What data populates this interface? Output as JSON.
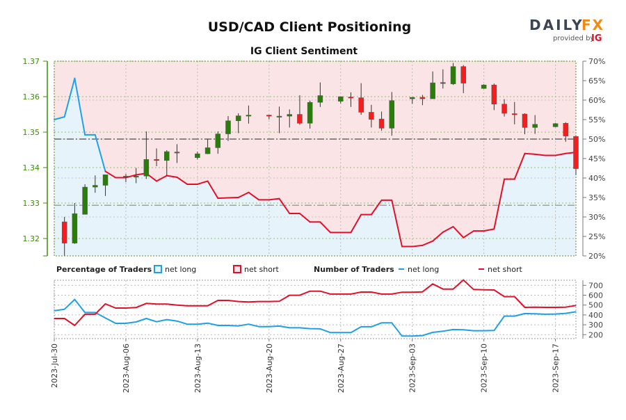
{
  "header": {
    "title": "USD/CAD Client Positioning",
    "subtitle": "IG Client Sentiment"
  },
  "logo": {
    "brand_dark": "DAILY",
    "brand_accent": "FX",
    "provided_by": "provided by",
    "provider": "IG"
  },
  "legend": {
    "pct_title": "Percentage of Traders",
    "pct_long": "net long",
    "pct_short": "net short",
    "num_title": "Number of Traders",
    "num_long": "net long",
    "num_short": "net short"
  },
  "colors": {
    "long": "#1ea0e6",
    "short": "#e0102a",
    "long_fill": "#e6f3fb",
    "short_fill": "#fae4e5",
    "candle_up": "#2a7d0b",
    "candle_down": "#f41e1e",
    "price_axis": "#3d8b0a"
  },
  "chart_data": [
    {
      "type": "candlestick+area",
      "title": "USD/CAD Client Positioning",
      "subtitle": "IG Client Sentiment",
      "left_axis": {
        "ylim": [
          1.3151,
          1.37
        ],
        "ticks": [
          "1.37",
          "1.36",
          "1.35",
          "1.34",
          "1.33",
          "1.32"
        ],
        "tick_values": [
          1.37,
          1.36,
          1.35,
          1.34,
          1.33,
          1.32
        ]
      },
      "right_axis": {
        "ylim": [
          20,
          70
        ],
        "ticks": [
          "70%",
          "65%",
          "60%",
          "55%",
          "50%",
          "45%",
          "40%",
          "35%",
          "30%",
          "25%",
          "20%"
        ],
        "tick_values": [
          70,
          65,
          60,
          55,
          50,
          45,
          40,
          35,
          30,
          25,
          20
        ]
      },
      "x_ticks": [
        "2023-Jul-30",
        "2023-Aug-06",
        "2023-Aug-13",
        "2023-Aug-20",
        "2023-Aug-27",
        "2023-Sep-03",
        "2023-Sep-10",
        "2023-Sep-17"
      ],
      "x_tick_dates": [
        "2023-07-30",
        "2023-08-06",
        "2023-08-13",
        "2023-08-20",
        "2023-08-27",
        "2023-09-03",
        "2023-09-10",
        "2023-09-17"
      ],
      "x_range": [
        "2023-07-30",
        "2023-09-19"
      ],
      "grid": true,
      "reference_levels_pct": [
        50,
        33
      ],
      "candles": [
        {
          "d": "2023-07-31",
          "o": 1.3247,
          "h": 1.3261,
          "l": 1.3152,
          "c": 1.3187
        },
        {
          "d": "2023-08-01",
          "o": 1.3187,
          "h": 1.33,
          "l": 1.3185,
          "c": 1.327
        },
        {
          "d": "2023-08-02",
          "o": 1.3268,
          "h": 1.3353,
          "l": 1.3268,
          "c": 1.3345
        },
        {
          "d": "2023-08-03",
          "o": 1.3345,
          "h": 1.3378,
          "l": 1.3329,
          "c": 1.335
        },
        {
          "d": "2023-08-04",
          "o": 1.335,
          "h": 1.338,
          "l": 1.332,
          "c": 1.338
        },
        {
          "d": "2023-08-06",
          "o": 1.3376,
          "h": 1.3382,
          "l": 1.3359,
          "c": 1.3374
        },
        {
          "d": "2023-08-07",
          "o": 1.3375,
          "h": 1.3399,
          "l": 1.3356,
          "c": 1.3376
        },
        {
          "d": "2023-08-08",
          "o": 1.3376,
          "h": 1.3502,
          "l": 1.3368,
          "c": 1.3423
        },
        {
          "d": "2023-08-09",
          "o": 1.3423,
          "h": 1.3454,
          "l": 1.3404,
          "c": 1.3421
        },
        {
          "d": "2023-08-10",
          "o": 1.342,
          "h": 1.3449,
          "l": 1.3377,
          "c": 1.3445
        },
        {
          "d": "2023-08-11",
          "o": 1.3444,
          "h": 1.3466,
          "l": 1.3413,
          "c": 1.3443
        },
        {
          "d": "2023-08-13",
          "o": 1.3428,
          "h": 1.3445,
          "l": 1.3423,
          "c": 1.3439
        },
        {
          "d": "2023-08-14",
          "o": 1.3439,
          "h": 1.3481,
          "l": 1.3438,
          "c": 1.3456
        },
        {
          "d": "2023-08-15",
          "o": 1.3456,
          "h": 1.3502,
          "l": 1.3439,
          "c": 1.3495
        },
        {
          "d": "2023-08-16",
          "o": 1.3495,
          "h": 1.3545,
          "l": 1.3475,
          "c": 1.3532
        },
        {
          "d": "2023-08-17",
          "o": 1.3532,
          "h": 1.3553,
          "l": 1.3497,
          "c": 1.3546
        },
        {
          "d": "2023-08-18",
          "o": 1.3547,
          "h": 1.3575,
          "l": 1.3524,
          "c": 1.3548
        },
        {
          "d": "2023-08-20",
          "o": 1.3548,
          "h": 1.3549,
          "l": 1.3536,
          "c": 1.3545
        },
        {
          "d": "2023-08-21",
          "o": 1.3545,
          "h": 1.3572,
          "l": 1.3497,
          "c": 1.3545
        },
        {
          "d": "2023-08-22",
          "o": 1.3545,
          "h": 1.3564,
          "l": 1.3513,
          "c": 1.355
        },
        {
          "d": "2023-08-23",
          "o": 1.355,
          "h": 1.3604,
          "l": 1.3521,
          "c": 1.3525
        },
        {
          "d": "2023-08-24",
          "o": 1.3525,
          "h": 1.3589,
          "l": 1.351,
          "c": 1.3584
        },
        {
          "d": "2023-08-25",
          "o": 1.3584,
          "h": 1.364,
          "l": 1.3571,
          "c": 1.3603
        },
        {
          "d": "2023-08-27",
          "o": 1.3587,
          "h": 1.36,
          "l": 1.3581,
          "c": 1.36
        },
        {
          "d": "2023-08-28",
          "o": 1.3599,
          "h": 1.3612,
          "l": 1.3571,
          "c": 1.3598
        },
        {
          "d": "2023-08-29",
          "o": 1.3597,
          "h": 1.3638,
          "l": 1.3549,
          "c": 1.3556
        },
        {
          "d": "2023-08-30",
          "o": 1.3556,
          "h": 1.3577,
          "l": 1.3513,
          "c": 1.3536
        },
        {
          "d": "2023-08-31",
          "o": 1.3537,
          "h": 1.3558,
          "l": 1.3504,
          "c": 1.3511
        },
        {
          "d": "2023-09-01",
          "o": 1.3511,
          "h": 1.3613,
          "l": 1.349,
          "c": 1.3589
        },
        {
          "d": "2023-09-03",
          "o": 1.3594,
          "h": 1.3598,
          "l": 1.358,
          "c": 1.3598
        },
        {
          "d": "2023-09-04",
          "o": 1.3598,
          "h": 1.3605,
          "l": 1.3576,
          "c": 1.3594
        },
        {
          "d": "2023-09-05",
          "o": 1.3594,
          "h": 1.3671,
          "l": 1.3594,
          "c": 1.3639
        },
        {
          "d": "2023-09-06",
          "o": 1.364,
          "h": 1.3677,
          "l": 1.3623,
          "c": 1.3639
        },
        {
          "d": "2023-09-07",
          "o": 1.3636,
          "h": 1.3695,
          "l": 1.3633,
          "c": 1.3685
        },
        {
          "d": "2023-09-08",
          "o": 1.3685,
          "h": 1.3689,
          "l": 1.361,
          "c": 1.3638
        },
        {
          "d": "2023-09-10",
          "o": 1.3623,
          "h": 1.3635,
          "l": 1.3622,
          "c": 1.3633
        },
        {
          "d": "2023-09-11",
          "o": 1.3633,
          "h": 1.3637,
          "l": 1.3562,
          "c": 1.3579
        },
        {
          "d": "2023-09-12",
          "o": 1.3579,
          "h": 1.3593,
          "l": 1.3544,
          "c": 1.3553
        },
        {
          "d": "2023-09-13",
          "o": 1.3552,
          "h": 1.3585,
          "l": 1.3522,
          "c": 1.3551
        },
        {
          "d": "2023-09-14",
          "o": 1.3551,
          "h": 1.3553,
          "l": 1.3494,
          "c": 1.3513
        },
        {
          "d": "2023-09-15",
          "o": 1.3513,
          "h": 1.3548,
          "l": 1.3495,
          "c": 1.3522
        },
        {
          "d": "2023-09-17",
          "o": 1.3515,
          "h": 1.3526,
          "l": 1.3514,
          "c": 1.3524
        },
        {
          "d": "2023-09-18",
          "o": 1.3525,
          "h": 1.3528,
          "l": 1.3473,
          "c": 1.3489
        },
        {
          "d": "2023-09-19",
          "o": 1.3488,
          "h": 1.3488,
          "l": 1.3379,
          "c": 1.3397
        }
      ],
      "dates": [
        "2023-07-30",
        "2023-07-31",
        "2023-08-01",
        "2023-08-02",
        "2023-08-03",
        "2023-08-04",
        "2023-08-05",
        "2023-08-06",
        "2023-08-07",
        "2023-08-08",
        "2023-08-09",
        "2023-08-10",
        "2023-08-11",
        "2023-08-12",
        "2023-08-13",
        "2023-08-14",
        "2023-08-15",
        "2023-08-16",
        "2023-08-17",
        "2023-08-18",
        "2023-08-19",
        "2023-08-20",
        "2023-08-21",
        "2023-08-22",
        "2023-08-23",
        "2023-08-24",
        "2023-08-25",
        "2023-08-26",
        "2023-08-27",
        "2023-08-28",
        "2023-08-29",
        "2023-08-30",
        "2023-08-31",
        "2023-09-01",
        "2023-09-02",
        "2023-09-03",
        "2023-09-04",
        "2023-09-05",
        "2023-09-06",
        "2023-09-07",
        "2023-09-08",
        "2023-09-09",
        "2023-09-10",
        "2023-09-11",
        "2023-09-12",
        "2023-09-13",
        "2023-09-14",
        "2023-09-15",
        "2023-09-16",
        "2023-09-17",
        "2023-09-18",
        "2023-09-19"
      ],
      "net_long_pct": [
        55.0,
        55.7,
        65.6,
        51.1,
        51.1,
        41.7,
        40.1,
        40.1,
        40.8,
        41.2,
        39.2,
        40.6,
        40.2,
        38.4,
        38.4,
        39.2,
        34.8,
        34.9,
        35.0,
        36.3,
        34.4,
        34.4,
        34.7,
        30.9,
        30.9,
        28.7,
        28.7,
        26.0,
        26.0,
        26.0,
        30.6,
        30.6,
        34.3,
        34.3,
        22.4,
        22.4,
        22.7,
        23.8,
        26.1,
        27.5,
        24.7,
        26.4,
        26.4,
        26.9,
        39.7,
        39.7,
        46.3,
        46.1,
        45.8,
        45.8,
        46.3,
        46.6
      ]
    },
    {
      "type": "line",
      "title": "Number of Traders",
      "ylim": [
        150,
        750
      ],
      "ticks": [
        "700",
        "600",
        "500",
        "400",
        "300",
        "200"
      ],
      "tick_values": [
        700,
        600,
        500,
        400,
        300,
        200
      ],
      "grid": true,
      "series": [
        {
          "name": "net long",
          "values": [
            442,
            458,
            557,
            425,
            425,
            369,
            315,
            315,
            329,
            364,
            331,
            353,
            338,
            306,
            306,
            317,
            294,
            294,
            289,
            306,
            282,
            282,
            287,
            270,
            270,
            261,
            259,
            221,
            221,
            221,
            280,
            280,
            320,
            320,
            186,
            186,
            191,
            223,
            235,
            252,
            249,
            240,
            240,
            242,
            388,
            388,
            414,
            411,
            407,
            409,
            416,
            432
          ]
        },
        {
          "name": "net short",
          "values": [
            364,
            364,
            294,
            407,
            407,
            512,
            470,
            470,
            475,
            517,
            510,
            510,
            500,
            493,
            493,
            493,
            547,
            547,
            536,
            531,
            536,
            536,
            538,
            599,
            599,
            641,
            641,
            611,
            611,
            611,
            632,
            632,
            611,
            611,
            630,
            630,
            634,
            714,
            662,
            662,
            754,
            658,
            655,
            653,
            585,
            585,
            477,
            479,
            477,
            477,
            479,
            496
          ]
        }
      ]
    }
  ]
}
